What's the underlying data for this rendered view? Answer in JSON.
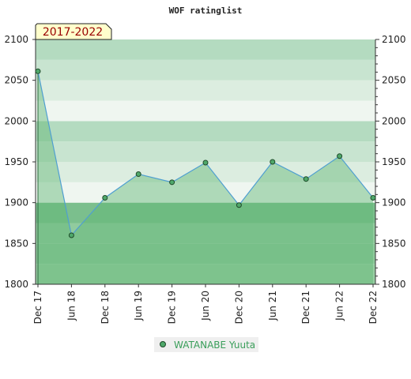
{
  "chart_data": {
    "type": "line",
    "title": "WOF ratinglist",
    "period_label": "2017-2022",
    "categories": [
      "Dec 17",
      "Jun 18",
      "Dec 18",
      "Jun 19",
      "Dec 19",
      "Jun 20",
      "Dec 20",
      "Jun 21",
      "Dec 21",
      "Jun 22",
      "Dec 22"
    ],
    "series": [
      {
        "name": "WATANABE Yuuta",
        "values": [
          2061,
          1860,
          1906,
          1935,
          1925,
          1949,
          1897,
          1950,
          1929,
          1957,
          1906
        ]
      }
    ],
    "ylim": [
      1800,
      2100
    ],
    "yticks": [
      1800,
      1850,
      1900,
      1950,
      2000,
      2050,
      2100
    ],
    "ytick_labels": [
      "1800",
      "1850",
      "1900",
      "1950",
      "2000",
      "2050",
      "2100"
    ],
    "xlabel": "",
    "ylabel": "",
    "legend_position": "bottom-center",
    "axes_both_sides": true,
    "colors": {
      "line": "#4f9fd1",
      "marker_fill": "#4fa86a",
      "marker_stroke": "#1f4a2a",
      "area_fill": "#5fb573",
      "legend_text": "#3a9e5a",
      "legend_bg": "#efefef",
      "period_bg": "#ffffcc"
    }
  }
}
